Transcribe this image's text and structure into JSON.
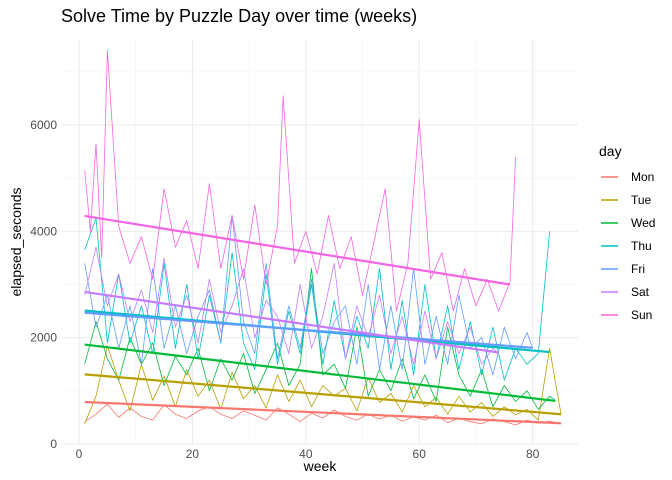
{
  "chart_data": {
    "type": "line",
    "title": "Solve Time by Puzzle Day over time (weeks)",
    "xlabel": "week",
    "ylabel": "elapsed_seconds",
    "xlim": [
      -3,
      88
    ],
    "ylim": [
      0,
      7600
    ],
    "xticks": [
      0,
      20,
      40,
      60,
      80
    ],
    "yticks": [
      0,
      2000,
      4000,
      6000
    ],
    "grid": true,
    "legend": {
      "title": "day",
      "position": "right"
    },
    "series": [
      {
        "name": "Mon",
        "color": "#F8766D",
        "trend": [
          [
            1,
            790
          ],
          [
            85,
            390
          ]
        ],
        "values": [
          [
            1,
            420
          ],
          [
            3,
            560
          ],
          [
            5,
            750
          ],
          [
            7,
            500
          ],
          [
            9,
            680
          ],
          [
            11,
            520
          ],
          [
            13,
            450
          ],
          [
            15,
            740
          ],
          [
            17,
            560
          ],
          [
            19,
            480
          ],
          [
            21,
            620
          ],
          [
            23,
            700
          ],
          [
            25,
            560
          ],
          [
            27,
            480
          ],
          [
            29,
            620
          ],
          [
            31,
            540
          ],
          [
            33,
            450
          ],
          [
            35,
            680
          ],
          [
            37,
            560
          ],
          [
            39,
            420
          ],
          [
            41,
            580
          ],
          [
            43,
            490
          ],
          [
            45,
            640
          ],
          [
            47,
            520
          ],
          [
            49,
            450
          ],
          [
            51,
            560
          ],
          [
            53,
            470
          ],
          [
            55,
            540
          ],
          [
            57,
            430
          ],
          [
            59,
            510
          ],
          [
            61,
            450
          ],
          [
            63,
            540
          ],
          [
            65,
            400
          ],
          [
            67,
            490
          ],
          [
            69,
            420
          ],
          [
            71,
            380
          ],
          [
            73,
            470
          ],
          [
            75,
            420
          ],
          [
            77,
            360
          ],
          [
            79,
            450
          ],
          [
            81,
            390
          ],
          [
            83,
            430
          ],
          [
            85,
            380
          ]
        ]
      },
      {
        "name": "Tue",
        "color": "#B79F00",
        "trend": [
          [
            1,
            1310
          ],
          [
            85,
            560
          ]
        ],
        "values": [
          [
            1,
            380
          ],
          [
            3,
            900
          ],
          [
            5,
            1850
          ],
          [
            7,
            1200
          ],
          [
            9,
            620
          ],
          [
            11,
            1500
          ],
          [
            13,
            820
          ],
          [
            15,
            1280
          ],
          [
            17,
            700
          ],
          [
            19,
            1400
          ],
          [
            21,
            900
          ],
          [
            23,
            1200
          ],
          [
            25,
            650
          ],
          [
            27,
            1350
          ],
          [
            29,
            850
          ],
          [
            31,
            1100
          ],
          [
            33,
            680
          ],
          [
            35,
            1300
          ],
          [
            37,
            800
          ],
          [
            39,
            1200
          ],
          [
            41,
            700
          ],
          [
            43,
            1100
          ],
          [
            45,
            900
          ],
          [
            47,
            1050
          ],
          [
            49,
            620
          ],
          [
            51,
            1250
          ],
          [
            53,
            780
          ],
          [
            55,
            950
          ],
          [
            57,
            600
          ],
          [
            59,
            1100
          ],
          [
            61,
            700
          ],
          [
            63,
            880
          ],
          [
            65,
            560
          ],
          [
            67,
            900
          ],
          [
            69,
            600
          ],
          [
            71,
            780
          ],
          [
            73,
            520
          ],
          [
            75,
            700
          ],
          [
            77,
            550
          ],
          [
            79,
            650
          ],
          [
            81,
            450
          ],
          [
            83,
            1800
          ],
          [
            85,
            560
          ]
        ]
      },
      {
        "name": "Wed",
        "color": "#00BA38",
        "trend": [
          [
            1,
            1870
          ],
          [
            84,
            810
          ]
        ],
        "values": [
          [
            1,
            1500
          ],
          [
            3,
            2300
          ],
          [
            5,
            1600
          ],
          [
            7,
            1200
          ],
          [
            9,
            2000
          ],
          [
            11,
            1500
          ],
          [
            13,
            1900
          ],
          [
            15,
            1100
          ],
          [
            17,
            1650
          ],
          [
            19,
            1300
          ],
          [
            21,
            1800
          ],
          [
            23,
            1000
          ],
          [
            25,
            1600
          ],
          [
            27,
            1200
          ],
          [
            29,
            1700
          ],
          [
            31,
            950
          ],
          [
            33,
            1400
          ],
          [
            35,
            1900
          ],
          [
            37,
            1100
          ],
          [
            39,
            1500
          ],
          [
            41,
            3300
          ],
          [
            43,
            1300
          ],
          [
            45,
            1500
          ],
          [
            47,
            1050
          ],
          [
            49,
            2200
          ],
          [
            51,
            900
          ],
          [
            53,
            1400
          ],
          [
            55,
            1000
          ],
          [
            57,
            1600
          ],
          [
            59,
            850
          ],
          [
            61,
            1300
          ],
          [
            63,
            800
          ],
          [
            65,
            2200
          ],
          [
            67,
            1300
          ],
          [
            69,
            900
          ],
          [
            71,
            1400
          ],
          [
            73,
            700
          ],
          [
            75,
            1100
          ],
          [
            77,
            800
          ],
          [
            79,
            1000
          ],
          [
            81,
            650
          ],
          [
            83,
            900
          ],
          [
            84,
            820
          ]
        ]
      },
      {
        "name": "Thu",
        "color": "#00BFC4",
        "trend": [
          [
            1,
            2510
          ],
          [
            83,
            1730
          ]
        ],
        "values": [
          [
            1,
            3650
          ],
          [
            3,
            4250
          ],
          [
            5,
            1900
          ],
          [
            7,
            3200
          ],
          [
            9,
            1900
          ],
          [
            11,
            2600
          ],
          [
            13,
            1700
          ],
          [
            15,
            3400
          ],
          [
            17,
            1800
          ],
          [
            19,
            3000
          ],
          [
            21,
            1600
          ],
          [
            23,
            2800
          ],
          [
            25,
            1900
          ],
          [
            27,
            3600
          ],
          [
            29,
            1900
          ],
          [
            31,
            1400
          ],
          [
            33,
            3200
          ],
          [
            35,
            1500
          ],
          [
            37,
            2500
          ],
          [
            39,
            1700
          ],
          [
            41,
            3000
          ],
          [
            43,
            1500
          ],
          [
            45,
            2700
          ],
          [
            47,
            1600
          ],
          [
            49,
            2400
          ],
          [
            51,
            1800
          ],
          [
            53,
            3300
          ],
          [
            55,
            1400
          ],
          [
            57,
            2700
          ],
          [
            59,
            1300
          ],
          [
            61,
            3000
          ],
          [
            63,
            1600
          ],
          [
            65,
            2600
          ],
          [
            67,
            1400
          ],
          [
            69,
            2300
          ],
          [
            71,
            1300
          ],
          [
            73,
            2200
          ],
          [
            75,
            1200
          ],
          [
            77,
            1800
          ],
          [
            79,
            1500
          ],
          [
            81,
            1700
          ],
          [
            83,
            4000
          ]
        ]
      },
      {
        "name": "Fri",
        "color": "#619CFF",
        "trend": [
          [
            1,
            2470
          ],
          [
            80,
            1810
          ]
        ],
        "values": [
          [
            1,
            3400
          ],
          [
            3,
            2200
          ],
          [
            5,
            2800
          ],
          [
            7,
            1800
          ],
          [
            9,
            2600
          ],
          [
            11,
            1500
          ],
          [
            13,
            3300
          ],
          [
            15,
            1800
          ],
          [
            17,
            2600
          ],
          [
            19,
            1700
          ],
          [
            21,
            2400
          ],
          [
            23,
            2900
          ],
          [
            25,
            1900
          ],
          [
            27,
            4300
          ],
          [
            29,
            2300
          ],
          [
            31,
            1700
          ],
          [
            33,
            3400
          ],
          [
            35,
            1600
          ],
          [
            37,
            2600
          ],
          [
            39,
            1800
          ],
          [
            41,
            3100
          ],
          [
            43,
            1700
          ],
          [
            45,
            2300
          ],
          [
            47,
            2600
          ],
          [
            49,
            1500
          ],
          [
            51,
            3000
          ],
          [
            53,
            1400
          ],
          [
            55,
            2600
          ],
          [
            57,
            1400
          ],
          [
            59,
            3300
          ],
          [
            61,
            1500
          ],
          [
            63,
            2400
          ],
          [
            65,
            1500
          ],
          [
            67,
            2800
          ],
          [
            69,
            1800
          ],
          [
            71,
            2000
          ],
          [
            73,
            1300
          ],
          [
            75,
            2200
          ],
          [
            77,
            1600
          ],
          [
            79,
            2100
          ],
          [
            80,
            1800
          ]
        ]
      },
      {
        "name": "Sat",
        "color": "#C77CFF",
        "trend": [
          [
            1,
            2860
          ],
          [
            74,
            1720
          ]
        ],
        "values": [
          [
            1,
            2800
          ],
          [
            3,
            3700
          ],
          [
            5,
            2600
          ],
          [
            7,
            3200
          ],
          [
            9,
            2300
          ],
          [
            11,
            2900
          ],
          [
            13,
            2100
          ],
          [
            15,
            3500
          ],
          [
            17,
            2200
          ],
          [
            19,
            2800
          ],
          [
            21,
            1900
          ],
          [
            23,
            3100
          ],
          [
            25,
            2100
          ],
          [
            27,
            2600
          ],
          [
            29,
            3300
          ],
          [
            31,
            2000
          ],
          [
            33,
            2700
          ],
          [
            35,
            2400
          ],
          [
            37,
            1700
          ],
          [
            39,
            3000
          ],
          [
            41,
            1800
          ],
          [
            43,
            2400
          ],
          [
            45,
            3400
          ],
          [
            47,
            1600
          ],
          [
            49,
            2600
          ],
          [
            51,
            2000
          ],
          [
            53,
            2800
          ],
          [
            55,
            1700
          ],
          [
            57,
            2400
          ],
          [
            59,
            1500
          ],
          [
            61,
            2500
          ],
          [
            63,
            1600
          ],
          [
            65,
            2300
          ],
          [
            67,
            1700
          ],
          [
            69,
            2200
          ],
          [
            71,
            1500
          ],
          [
            73,
            1800
          ],
          [
            74,
            1700
          ]
        ]
      },
      {
        "name": "Sun",
        "color": "#F564E3",
        "trend": [
          [
            1,
            4290
          ],
          [
            76,
            3000
          ]
        ],
        "values": [
          [
            1,
            5150
          ],
          [
            2,
            4000
          ],
          [
            3,
            5650
          ],
          [
            4,
            3500
          ],
          [
            5,
            7400
          ],
          [
            7,
            4100
          ],
          [
            9,
            3400
          ],
          [
            11,
            3900
          ],
          [
            13,
            3100
          ],
          [
            15,
            4800
          ],
          [
            17,
            3700
          ],
          [
            19,
            4200
          ],
          [
            21,
            3300
          ],
          [
            23,
            4900
          ],
          [
            25,
            3300
          ],
          [
            27,
            4300
          ],
          [
            29,
            3100
          ],
          [
            31,
            4500
          ],
          [
            33,
            3000
          ],
          [
            35,
            4100
          ],
          [
            36,
            6550
          ],
          [
            38,
            3400
          ],
          [
            40,
            4000
          ],
          [
            42,
            3200
          ],
          [
            44,
            4300
          ],
          [
            46,
            3300
          ],
          [
            48,
            3900
          ],
          [
            50,
            2800
          ],
          [
            52,
            3800
          ],
          [
            54,
            4800
          ],
          [
            56,
            2500
          ],
          [
            58,
            3400
          ],
          [
            60,
            6100
          ],
          [
            62,
            3100
          ],
          [
            64,
            3600
          ],
          [
            66,
            2500
          ],
          [
            68,
            3300
          ],
          [
            70,
            2600
          ],
          [
            72,
            3100
          ],
          [
            74,
            2500
          ],
          [
            76,
            3050
          ],
          [
            77,
            5400
          ]
        ]
      }
    ]
  }
}
